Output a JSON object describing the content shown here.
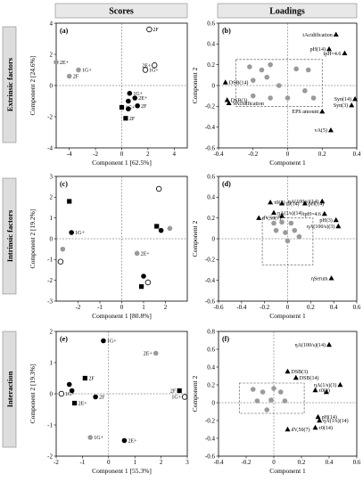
{
  "headers": {
    "scores": "Scores",
    "loadings": "Loadings"
  },
  "rows": [
    "Extrinsic factors",
    "Intrinsic factors",
    "Interaction"
  ],
  "chart_data": [
    {
      "id": "a",
      "type": "scatter",
      "panel_label": "(a)",
      "xlabel": "Component 1 [62.5%]",
      "ylabel": "Component 2 [24.6%]",
      "xlim": [
        -5,
        5
      ],
      "ylim": [
        -4,
        4
      ],
      "xticks": [
        -4,
        -2,
        0,
        2,
        4
      ],
      "yticks": [
        -4,
        -2,
        0,
        2,
        4
      ],
      "points": [
        {
          "x": -5.0,
          "y": 1.5,
          "label": "2E+",
          "style": "gray"
        },
        {
          "x": -4.0,
          "y": 0.6,
          "label": "2F",
          "style": "gray"
        },
        {
          "x": -3.3,
          "y": 1.0,
          "label": "1G+",
          "style": "gray"
        },
        {
          "x": 2.1,
          "y": 3.6,
          "label": "2F",
          "style": "open"
        },
        {
          "x": 2.5,
          "y": 1.3,
          "label": "2E+",
          "style": "open"
        },
        {
          "x": 1.8,
          "y": 1.0,
          "label": "1G+",
          "style": "open"
        },
        {
          "x": 0.6,
          "y": -0.5,
          "label": "1G+",
          "style": "filled"
        },
        {
          "x": 1.0,
          "y": -0.8,
          "label": "2E+",
          "style": "filled"
        },
        {
          "x": 0.5,
          "y": -1.0,
          "label": "",
          "style": "filled"
        },
        {
          "x": 1.2,
          "y": -1.3,
          "label": "2F",
          "style": "filled"
        },
        {
          "x": 0.5,
          "y": -1.5,
          "label": "",
          "style": "filled"
        },
        {
          "x": 0.0,
          "y": -1.4,
          "label": "1G+",
          "style": "square"
        },
        {
          "x": 0.3,
          "y": -2.1,
          "label": "2F",
          "style": "square"
        }
      ]
    },
    {
      "id": "b",
      "type": "scatter",
      "panel_label": "(b)",
      "xlabel": "Component 1",
      "ylabel": "Component 2",
      "xlim": [
        -0.4,
        0.4
      ],
      "ylim": [
        -0.6,
        0.6
      ],
      "xticks": [
        -0.4,
        -0.2,
        0,
        0.2,
        0.4
      ],
      "yticks": [
        -0.6,
        -0.4,
        -0.2,
        0,
        0.2,
        0.4,
        0.6
      ],
      "points": [
        {
          "x": 0.28,
          "y": 0.49,
          "label": "tAcidification",
          "style": "triangle"
        },
        {
          "x": 0.24,
          "y": 0.35,
          "label": "pH(14)",
          "style": "triangle"
        },
        {
          "x": 0.33,
          "y": 0.31,
          "label": "tpH=4.6",
          "style": "triangle"
        },
        {
          "x": -0.36,
          "y": 0.03,
          "label": "DSB(14)",
          "style": "triangle"
        },
        {
          "x": -0.35,
          "y": -0.14,
          "label": "DSB(3)",
          "style": "triangle"
        },
        {
          "x": -0.34,
          "y": -0.17,
          "label": "VAcidification",
          "style": "triangle"
        },
        {
          "x": 0.39,
          "y": -0.13,
          "label": "Syn(14)",
          "style": "triangle"
        },
        {
          "x": 0.37,
          "y": -0.19,
          "label": "Syn(3)",
          "style": "triangle"
        },
        {
          "x": 0.2,
          "y": -0.25,
          "label": "EPS amount",
          "style": "triangle"
        },
        {
          "x": 0.25,
          "y": -0.43,
          "label": "vA(5)",
          "style": "triangle"
        },
        {
          "x": -0.22,
          "y": 0.18,
          "label": "",
          "style": "gray"
        },
        {
          "x": -0.15,
          "y": 0.15,
          "label": "",
          "style": "gray"
        },
        {
          "x": -0.1,
          "y": 0.2,
          "label": "",
          "style": "gray"
        },
        {
          "x": 0.05,
          "y": 0.16,
          "label": "",
          "style": "gray"
        },
        {
          "x": 0.12,
          "y": 0.15,
          "label": "",
          "style": "gray"
        },
        {
          "x": -0.2,
          "y": 0.05,
          "label": "",
          "style": "gray"
        },
        {
          "x": -0.12,
          "y": 0.08,
          "label": "",
          "style": "gray"
        },
        {
          "x": -0.05,
          "y": 0.0,
          "label": "",
          "style": "gray"
        },
        {
          "x": -0.2,
          "y": -0.1,
          "label": "",
          "style": "gray"
        },
        {
          "x": -0.1,
          "y": -0.12,
          "label": "",
          "style": "gray"
        },
        {
          "x": 0.0,
          "y": -0.12,
          "label": "",
          "style": "gray"
        },
        {
          "x": 0.1,
          "y": -0.05,
          "label": "",
          "style": "gray"
        },
        {
          "x": 0.15,
          "y": -0.12,
          "label": "",
          "style": "gray"
        }
      ]
    },
    {
      "id": "c",
      "type": "scatter",
      "panel_label": "(c)",
      "xlabel": "Component 1 [80.8%]",
      "ylabel": "Component 2 [19.2%]",
      "xlim": [
        -3,
        3
      ],
      "ylim": [
        -3,
        3
      ],
      "xticks": [
        -2,
        -1,
        0,
        1,
        2
      ],
      "yticks": [
        -3,
        -2,
        -1,
        0,
        1,
        2,
        3
      ],
      "points": [
        {
          "x": -2.4,
          "y": 1.8,
          "label": "",
          "style": "square"
        },
        {
          "x": -2.3,
          "y": 0.3,
          "label": "1G+",
          "style": "filled"
        },
        {
          "x": -2.7,
          "y": -0.5,
          "label": "",
          "style": "gray"
        },
        {
          "x": -2.8,
          "y": -1.1,
          "label": "",
          "style": "open"
        },
        {
          "x": 1.7,
          "y": 2.4,
          "label": "",
          "style": "open"
        },
        {
          "x": 1.6,
          "y": 0.6,
          "label": "",
          "style": "square"
        },
        {
          "x": 2.2,
          "y": 0.5,
          "label": "",
          "style": "gray"
        },
        {
          "x": 1.8,
          "y": 0.4,
          "label": "",
          "style": "filled"
        },
        {
          "x": 0.7,
          "y": -0.7,
          "label": "2E+",
          "style": "gray"
        },
        {
          "x": 1.0,
          "y": -1.8,
          "label": "",
          "style": "filled"
        },
        {
          "x": 1.2,
          "y": -2.1,
          "label": "",
          "style": "open"
        },
        {
          "x": 0.9,
          "y": -2.3,
          "label": "",
          "style": "square"
        }
      ]
    },
    {
      "id": "d",
      "type": "scatter",
      "panel_label": "(d)",
      "xlabel": "Component 1",
      "ylabel": "Component 2",
      "xlim": [
        -0.6,
        0.6
      ],
      "ylim": [
        -0.6,
        0.6
      ],
      "xticks": [
        -0.6,
        -0.4,
        -0.2,
        0,
        0.2,
        0.4,
        0.6
      ],
      "yticks": [
        -0.6,
        -0.4,
        -0.2,
        0,
        0.2,
        0.4,
        0.6
      ],
      "points": [
        {
          "x": -0.15,
          "y": 0.35,
          "label": "τ0(3)",
          "style": "triangle"
        },
        {
          "x": -0.05,
          "y": 0.34,
          "label": "τ0(14)",
          "style": "triangle"
        },
        {
          "x": -0.12,
          "y": 0.25,
          "label": "ηA(1/s)(14)",
          "style": "triangle"
        },
        {
          "x": -0.05,
          "y": 0.22,
          "label": "",
          "style": "triangle"
        },
        {
          "x": -0.25,
          "y": 0.2,
          "label": "dV,50(7)",
          "style": "triangle"
        },
        {
          "x": 0.15,
          "y": 0.34,
          "label": "pH(14)",
          "style": "triangle"
        },
        {
          "x": 0.3,
          "y": 0.36,
          "label": "ηA(100/s)(14)",
          "style": "triangle"
        },
        {
          "x": 0.32,
          "y": 0.24,
          "label": "tpH=4.6",
          "style": "triangle"
        },
        {
          "x": 0.42,
          "y": 0.18,
          "label": "pH(3)",
          "style": "triangle"
        },
        {
          "x": 0.44,
          "y": 0.12,
          "label": "ηA(100/s)(3)",
          "style": "triangle"
        },
        {
          "x": 0.38,
          "y": -0.38,
          "label": "ηSerum",
          "style": "triangle"
        },
        {
          "x": -0.12,
          "y": 0.15,
          "label": "",
          "style": "gray"
        },
        {
          "x": -0.05,
          "y": 0.16,
          "label": "",
          "style": "gray"
        },
        {
          "x": 0.03,
          "y": 0.15,
          "label": "",
          "style": "gray"
        },
        {
          "x": -0.1,
          "y": 0.08,
          "label": "",
          "style": "gray"
        },
        {
          "x": -0.02,
          "y": 0.06,
          "label": "",
          "style": "gray"
        },
        {
          "x": 0.06,
          "y": 0.08,
          "label": "",
          "style": "gray"
        },
        {
          "x": 0.0,
          "y": -0.02,
          "label": "",
          "style": "gray"
        },
        {
          "x": 0.1,
          "y": 0.02,
          "label": "",
          "style": "gray"
        }
      ]
    },
    {
      "id": "e",
      "type": "scatter",
      "panel_label": "(e)",
      "xlabel": "Component 1 [55.3%]",
      "ylabel": "Component 2 [19.3%]",
      "xlim": [
        -2,
        3
      ],
      "ylim": [
        -2,
        2
      ],
      "xticks": [
        -2,
        -1,
        0,
        1,
        2,
        3
      ],
      "yticks": [
        -2,
        -1,
        0,
        1,
        2
      ],
      "points": [
        {
          "x": -0.2,
          "y": 1.7,
          "label": "1G+",
          "style": "filled"
        },
        {
          "x": 1.8,
          "y": 1.3,
          "label": "2E+",
          "style": "gray"
        },
        {
          "x": -1.5,
          "y": 0.3,
          "label": "",
          "style": "filled"
        },
        {
          "x": -1.4,
          "y": 0.1,
          "label": "",
          "style": "filled"
        },
        {
          "x": -0.9,
          "y": 0.5,
          "label": "2F",
          "style": "square"
        },
        {
          "x": -1.8,
          "y": 0.0,
          "label": "1G+",
          "style": "open"
        },
        {
          "x": -1.3,
          "y": -0.3,
          "label": "2E+",
          "style": "square"
        },
        {
          "x": -0.5,
          "y": -0.1,
          "label": "2F",
          "style": "filled"
        },
        {
          "x": -0.7,
          "y": -1.4,
          "label": "1G+",
          "style": "gray"
        },
        {
          "x": 0.6,
          "y": -1.5,
          "label": "2E+",
          "style": "filled"
        },
        {
          "x": 2.7,
          "y": 0.1,
          "label": "2F",
          "style": "square"
        },
        {
          "x": 2.9,
          "y": -0.1,
          "label": "1G+",
          "style": "open"
        }
      ]
    },
    {
      "id": "f",
      "type": "scatter",
      "panel_label": "(f)",
      "xlabel": "Component 1",
      "ylabel": "Component 2",
      "xlim": [
        -0.4,
        0.6
      ],
      "ylim": [
        -0.6,
        0.8
      ],
      "xticks": [
        -0.4,
        -0.2,
        0,
        0.2,
        0.4,
        0.6
      ],
      "yticks": [
        -0.6,
        -0.4,
        -0.2,
        0,
        0.2,
        0.4,
        0.6,
        0.8
      ],
      "points": [
        {
          "x": 0.4,
          "y": 0.65,
          "label": "ηA(100/s)(14)",
          "style": "triangle"
        },
        {
          "x": 0.1,
          "y": 0.35,
          "label": "DSB(3)",
          "style": "triangle"
        },
        {
          "x": 0.16,
          "y": 0.28,
          "label": "DSB(14)",
          "style": "triangle"
        },
        {
          "x": 0.48,
          "y": 0.2,
          "label": "ηA(1/s)(3)",
          "style": "triangle"
        },
        {
          "x": 0.3,
          "y": 0.14,
          "label": "τ0(3)",
          "style": "triangle"
        },
        {
          "x": 0.38,
          "y": 0.12,
          "label": "",
          "style": "triangle"
        },
        {
          "x": 0.32,
          "y": -0.16,
          "label": "pH(14)",
          "style": "triangle"
        },
        {
          "x": 0.33,
          "y": -0.2,
          "label": "ηA(1/s)(14)",
          "style": "triangle"
        },
        {
          "x": 0.1,
          "y": -0.3,
          "label": "dV,50(7)",
          "style": "triangle"
        },
        {
          "x": 0.3,
          "y": -0.28,
          "label": "τ0(14)",
          "style": "triangle"
        },
        {
          "x": -0.15,
          "y": 0.15,
          "label": "",
          "style": "gray"
        },
        {
          "x": -0.08,
          "y": 0.12,
          "label": "",
          "style": "gray"
        },
        {
          "x": 0.0,
          "y": 0.16,
          "label": "",
          "style": "gray"
        },
        {
          "x": 0.05,
          "y": 0.12,
          "label": "",
          "style": "gray"
        },
        {
          "x": -0.12,
          "y": 0.02,
          "label": "",
          "style": "gray"
        },
        {
          "x": -0.02,
          "y": 0.03,
          "label": "",
          "style": "gray"
        },
        {
          "x": 0.08,
          "y": 0.02,
          "label": "",
          "style": "gray"
        },
        {
          "x": -0.05,
          "y": -0.08,
          "label": "",
          "style": "gray"
        }
      ]
    }
  ]
}
